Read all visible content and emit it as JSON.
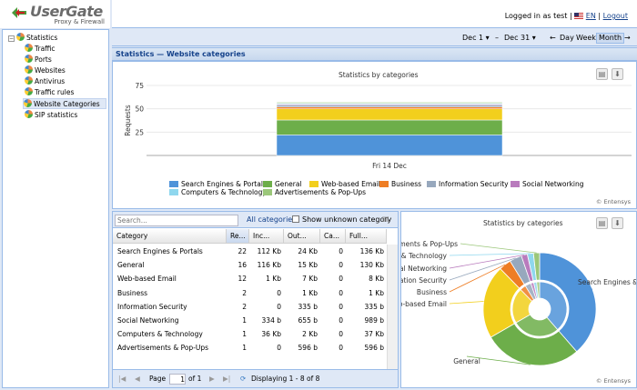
{
  "app": {
    "logo_name": "UserGate",
    "logo_sub": "Proxy & Firewall"
  },
  "nav": {
    "root": "Statistics",
    "items": [
      "Traffic",
      "Ports",
      "Websites",
      "Antivirus",
      "Traffic rules",
      "Website Categories",
      "SIP statistics"
    ],
    "selected": "Website Categories"
  },
  "header": {
    "logged_in": "Logged in as test |",
    "lang": "EN",
    "sep": "|",
    "logout": "Logout"
  },
  "datebar": {
    "from": "Dec 1",
    "dash": "–",
    "to": "Dec 31",
    "prev": "←",
    "day": "Day",
    "week": "Week",
    "month": "Month",
    "next": "→",
    "active": "Month"
  },
  "panel_title": "Statistics — Website categories",
  "bar_chart": {
    "title": "Statistics by categories",
    "credit": "© Entensys"
  },
  "grid": {
    "search_placeholder": "Search...",
    "all_categories": "All categories",
    "show_unknown": "Show unknown category",
    "columns": [
      "Category",
      "Re...",
      "Inc...",
      "Out...",
      "Ca...",
      "Full..."
    ],
    "rows": [
      [
        "Search Engines & Portals",
        "22",
        "112 Kb",
        "24 Kb",
        "0",
        "136 Kb"
      ],
      [
        "General",
        "16",
        "116 Kb",
        "15 Kb",
        "0",
        "130 Kb"
      ],
      [
        "Web-based Email",
        "12",
        "1 Kb",
        "7 Kb",
        "0",
        "8 Kb"
      ],
      [
        "Business",
        "2",
        "0",
        "1 Kb",
        "0",
        "1 Kb"
      ],
      [
        "Information Security",
        "2",
        "0",
        "335 b",
        "0",
        "335 b"
      ],
      [
        "Social Networking",
        "1",
        "334 b",
        "655 b",
        "0",
        "989 b"
      ],
      [
        "Computers & Technology",
        "1",
        "36 Kb",
        "2 Kb",
        "0",
        "37 Kb"
      ],
      [
        "Advertisements & Pop-Ups",
        "1",
        "0",
        "596 b",
        "0",
        "596 b"
      ]
    ],
    "pager": {
      "page_label": "Page",
      "page": "1",
      "of": "of 1",
      "displaying": "Displaying 1 - 8 of 8"
    }
  },
  "pie_chart": {
    "title": "Statistics by categories",
    "credit": "© Entensys"
  },
  "chart_data": [
    {
      "type": "bar",
      "title": "Statistics by categories",
      "ylabel": "Requests",
      "categories": [
        "Fri 14 Dec"
      ],
      "ylim": [
        0,
        75
      ],
      "yticks": [
        25,
        50,
        75
      ],
      "stacked": true,
      "legend": "bottom",
      "series": [
        {
          "name": "Search Engines & Portals",
          "values": [
            22
          ],
          "color": "#4f93d9"
        },
        {
          "name": "General",
          "values": [
            16
          ],
          "color": "#6dae4a"
        },
        {
          "name": "Web-based Email",
          "values": [
            12
          ],
          "color": "#f2cf1d"
        },
        {
          "name": "Business",
          "values": [
            2
          ],
          "color": "#ee7d24"
        },
        {
          "name": "Information Security",
          "values": [
            2
          ],
          "color": "#97a8bd"
        },
        {
          "name": "Social Networking",
          "values": [
            1
          ],
          "color": "#b97bbd"
        },
        {
          "name": "Computers & Technology",
          "values": [
            1
          ],
          "color": "#8fd7ee"
        },
        {
          "name": "Advertisements & Pop-Ups",
          "values": [
            1
          ],
          "color": "#9bc77a"
        }
      ]
    },
    {
      "type": "pie",
      "title": "Statistics by categories",
      "labels": [
        "Search Engines & Portals",
        "General",
        "Web-based Email",
        "Business",
        "Information Security",
        "Social Networking",
        "Computers & Technology",
        "Advertisements & Pop-Ups"
      ],
      "values": [
        22,
        16,
        12,
        2,
        2,
        1,
        1,
        1
      ],
      "colors": [
        "#4f93d9",
        "#6dae4a",
        "#f2cf1d",
        "#ee7d24",
        "#97a8bd",
        "#b97bbd",
        "#8fd7ee",
        "#9bc77a"
      ]
    }
  ]
}
